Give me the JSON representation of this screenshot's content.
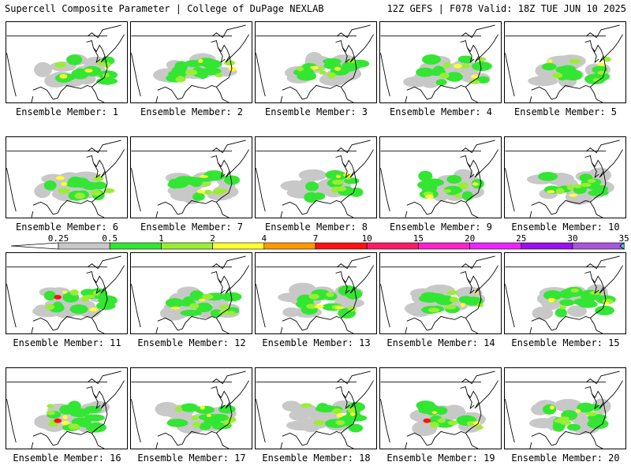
{
  "header": {
    "left": "Supercell Composite Parameter | College of DuPage NEXLAB",
    "right": "12Z GEFS | F078 Valid: 18Z TUE JUN 10 2025"
  },
  "members": [
    {
      "label": "Ensemble Member: 1"
    },
    {
      "label": "Ensemble Member: 2"
    },
    {
      "label": "Ensemble Member: 3"
    },
    {
      "label": "Ensemble Member: 4"
    },
    {
      "label": "Ensemble Member: 5"
    },
    {
      "label": "Ensemble Member: 6"
    },
    {
      "label": "Ensemble Member: 7"
    },
    {
      "label": "Ensemble Member: 8"
    },
    {
      "label": "Ensemble Member: 9"
    },
    {
      "label": "Ensemble Member: 10"
    },
    {
      "label": "Ensemble Member: 11"
    },
    {
      "label": "Ensemble Member: 12"
    },
    {
      "label": "Ensemble Member: 13"
    },
    {
      "label": "Ensemble Member: 14"
    },
    {
      "label": "Ensemble Member: 15"
    },
    {
      "label": "Ensemble Member: 16"
    },
    {
      "label": "Ensemble Member: 17"
    },
    {
      "label": "Ensemble Member: 18"
    },
    {
      "label": "Ensemble Member: 19"
    },
    {
      "label": "Ensemble Member: 20"
    }
  ],
  "colorbar": {
    "bins": [
      {
        "label": "0.25",
        "color": "#c8c8c8"
      },
      {
        "label": "0.5",
        "color": "#33e633"
      },
      {
        "label": "1",
        "color": "#99ee33"
      },
      {
        "label": "2",
        "color": "#ffff33"
      },
      {
        "label": "4",
        "color": "#ff9900"
      },
      {
        "label": "7",
        "color": "#ff1111"
      },
      {
        "label": "10",
        "color": "#ff1a66"
      },
      {
        "label": "15",
        "color": "#ff22cc"
      },
      {
        "label": "20",
        "color": "#ee22ff"
      },
      {
        "label": "25",
        "color": "#9911ee"
      },
      {
        "label": "30",
        "color": "#aa55dd"
      },
      {
        "label": "35",
        "color": "#33eeee"
      }
    ]
  }
}
